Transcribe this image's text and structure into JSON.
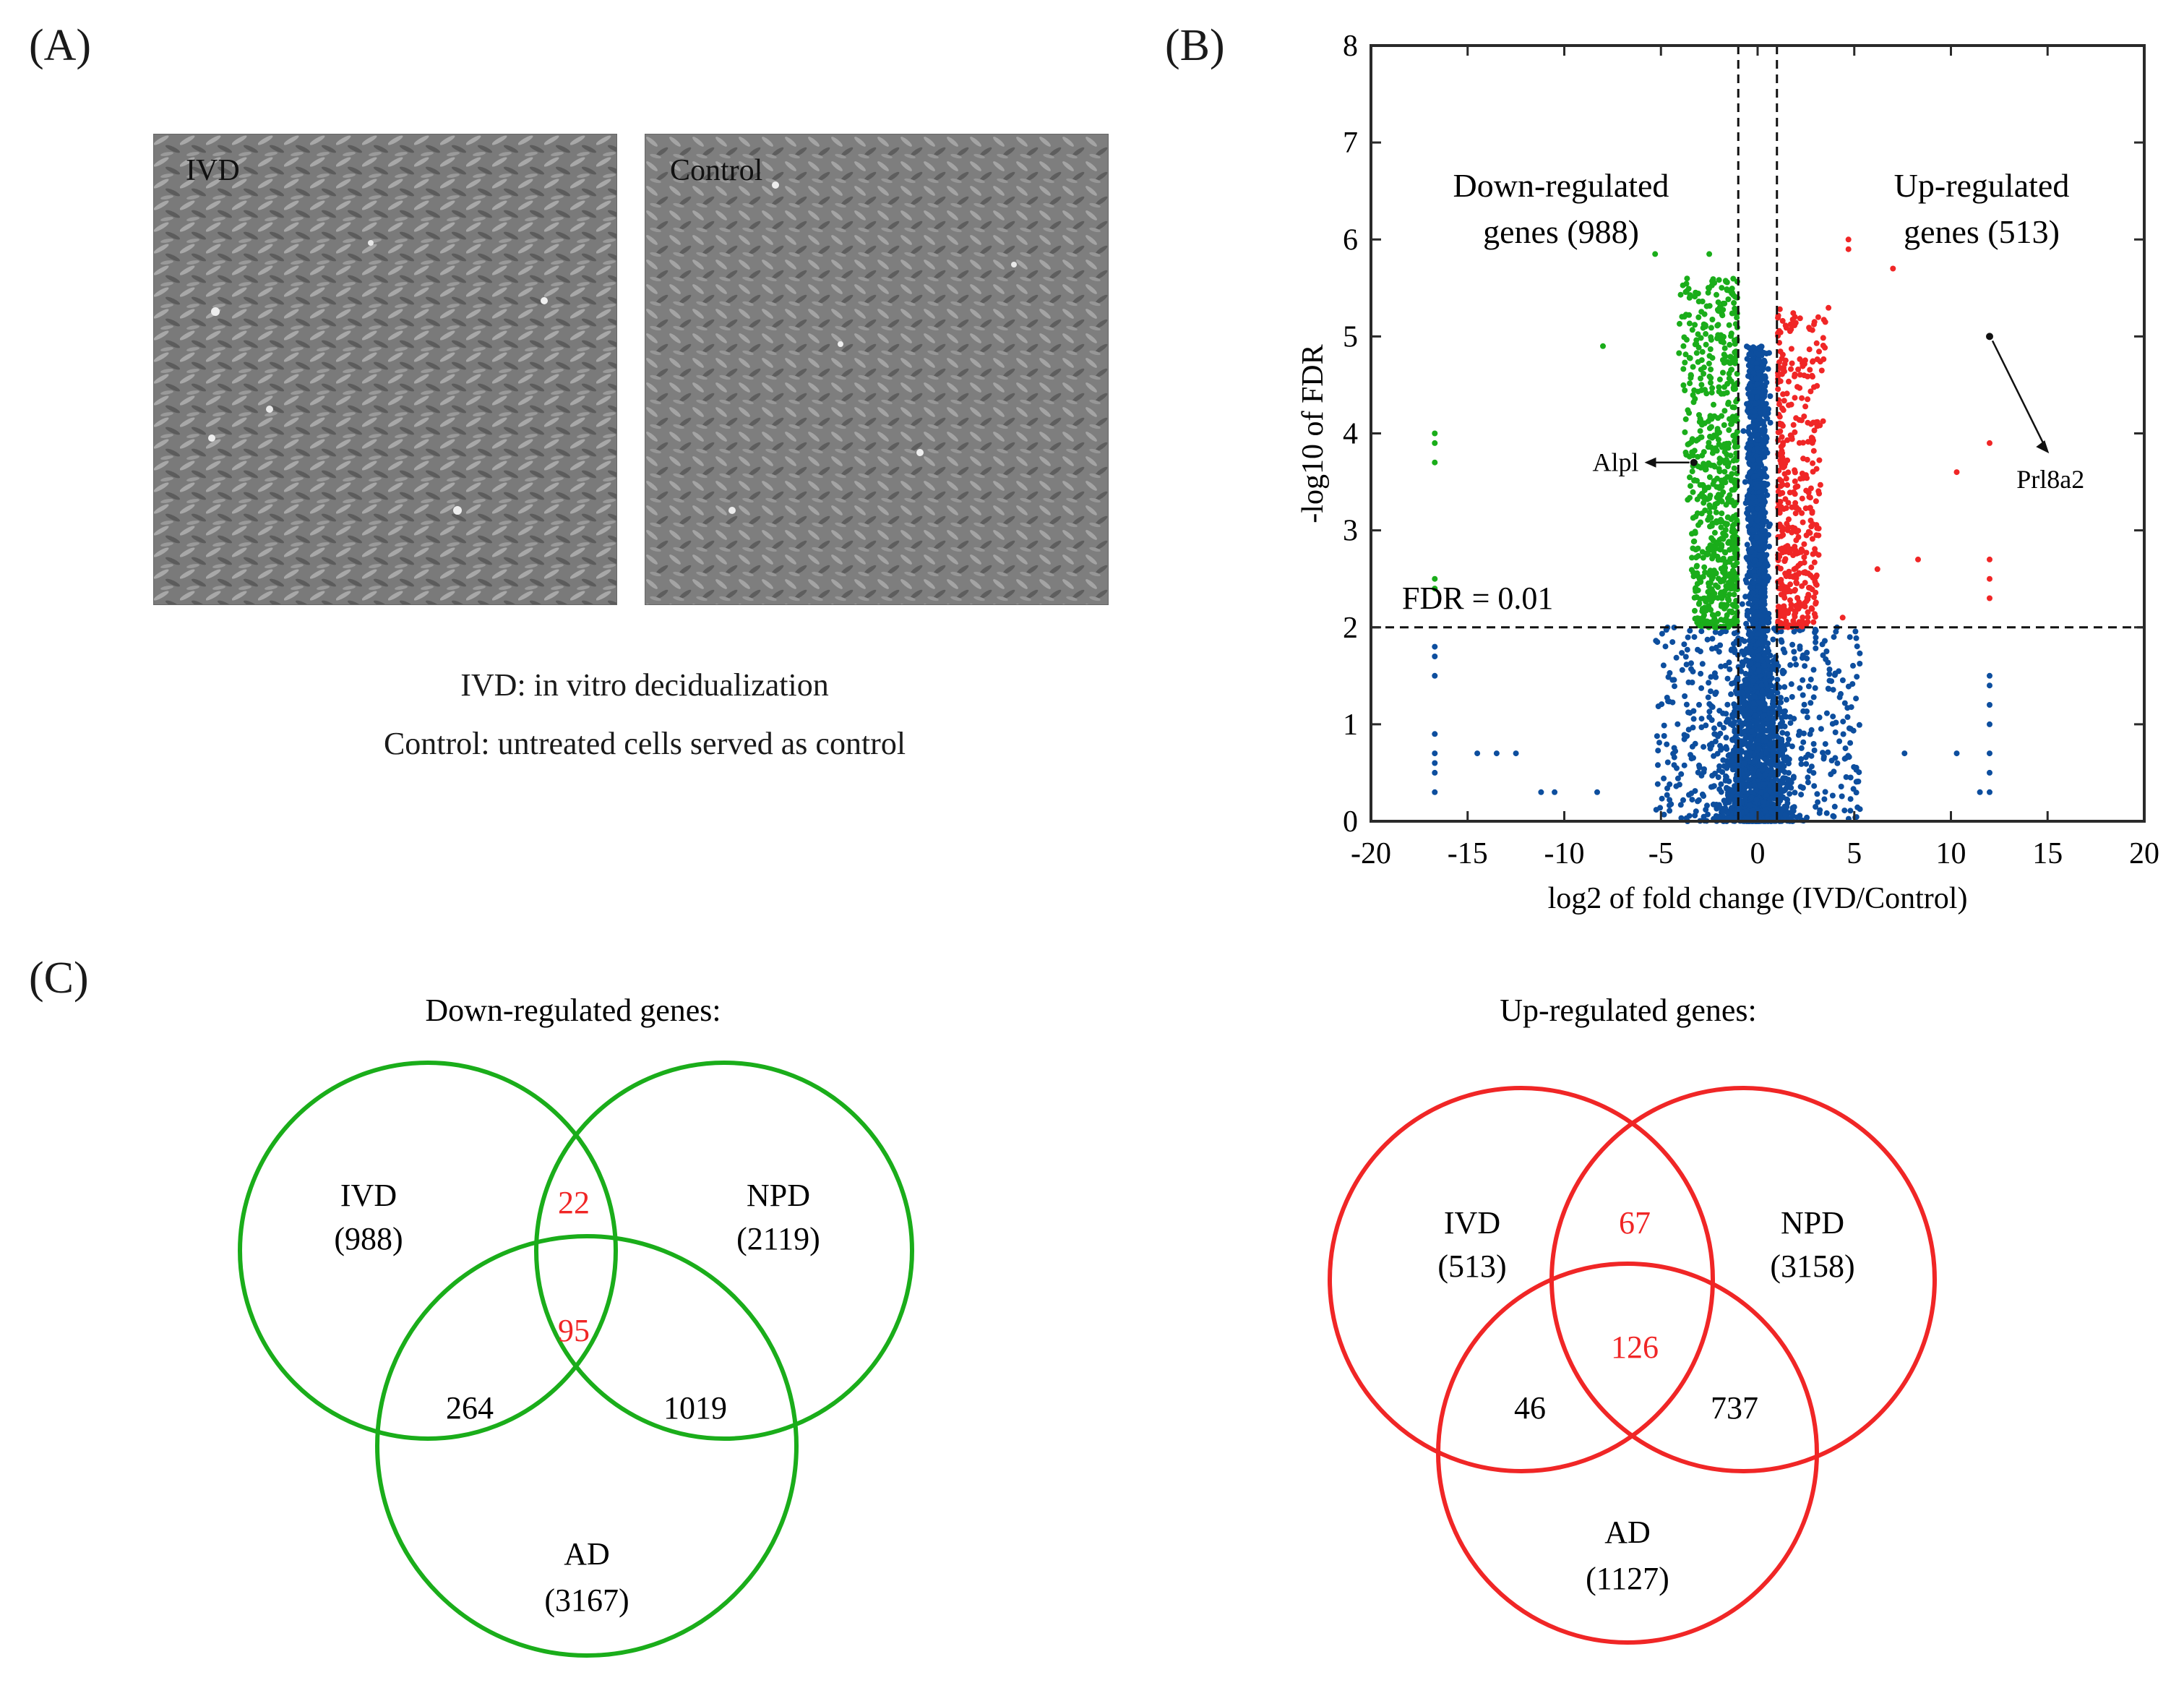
{
  "panels": {
    "a_label": "(A)",
    "b_label": "(B)",
    "c_label": "(C)"
  },
  "panel_a": {
    "image_left_label": "IVD",
    "image_right_label": "Control",
    "caption_line1": "IVD: in vitro decidualization",
    "caption_line2": "Control: untreated cells served as control"
  },
  "colors": {
    "down": "#1aad1a",
    "up": "#f02626",
    "ns": "#0d4e9e",
    "micrograph_bg": "#7d7d7d"
  },
  "chart_data": [
    {
      "type": "scatter",
      "subtype": "volcano",
      "xlabel": "log2 of fold change (IVD/Control)",
      "ylabel": "-log10 of FDR",
      "xlim": [
        -20,
        20
      ],
      "ylim": [
        0,
        8
      ],
      "xticks": [
        -20,
        -15,
        -10,
        -5,
        0,
        5,
        10,
        15,
        20
      ],
      "yticks": [
        0,
        1,
        2,
        3,
        4,
        5,
        6,
        7,
        8
      ],
      "thresholds": {
        "fdr_line_y": 2,
        "fold_change_lines_x": [
          -1,
          1
        ]
      },
      "fdr_label": "FDR = 0.01",
      "down_label_line1": "Down-regulated",
      "down_label_line2": "genes (988)",
      "up_label_line1": "Up-regulated",
      "up_label_line2": "genes (513)",
      "series": [
        {
          "name": "Down-regulated genes",
          "count": 988,
          "color": "#1aad1a",
          "outlier_points": [
            [
              -16.7,
              4.0
            ],
            [
              -16.7,
              3.9
            ],
            [
              -16.7,
              3.7
            ],
            [
              -16.7,
              2.5
            ],
            [
              -16.7,
              2.4
            ],
            [
              -8.0,
              4.9
            ],
            [
              -5.3,
              5.85
            ],
            [
              -2.5,
              5.85
            ]
          ]
        },
        {
          "name": "Up-regulated genes",
          "count": 513,
          "color": "#f02626",
          "outlier_points": [
            [
              4.7,
              6.0
            ],
            [
              4.7,
              5.9
            ],
            [
              7.0,
              5.7
            ],
            [
              12.0,
              3.9
            ],
            [
              12.0,
              2.7
            ],
            [
              12.0,
              2.5
            ],
            [
              12.0,
              2.3
            ],
            [
              10.3,
              3.6
            ],
            [
              8.3,
              2.7
            ],
            [
              6.2,
              2.6
            ],
            [
              4.4,
              2.1
            ]
          ]
        },
        {
          "name": "Not significant",
          "color": "#0d4e9e",
          "outlier_points": [
            [
              -16.7,
              1.8
            ],
            [
              -16.7,
              1.7
            ],
            [
              -16.7,
              1.5
            ],
            [
              -16.7,
              0.9
            ],
            [
              -16.7,
              0.7
            ],
            [
              -16.7,
              0.6
            ],
            [
              -16.7,
              0.5
            ],
            [
              -16.7,
              0.3
            ],
            [
              -14.5,
              0.7
            ],
            [
              -13.5,
              0.7
            ],
            [
              -12.5,
              0.7
            ],
            [
              -11.2,
              0.3
            ],
            [
              -10.5,
              0.3
            ],
            [
              -8.3,
              0.3
            ],
            [
              12.0,
              1.5
            ],
            [
              12.0,
              1.4
            ],
            [
              12.0,
              1.2
            ],
            [
              12.0,
              1.0
            ],
            [
              12.0,
              0.7
            ],
            [
              12.0,
              0.5
            ],
            [
              12.0,
              0.3
            ],
            [
              11.5,
              0.3
            ],
            [
              7.6,
              0.7
            ],
            [
              10.3,
              0.7
            ]
          ]
        }
      ],
      "annotations": [
        {
          "text": "Alpl",
          "point": [
            -3.3,
            3.7
          ],
          "label_at": [
            -6.0,
            3.7
          ]
        },
        {
          "text": "Prl8a2",
          "point": [
            12.0,
            5.0
          ],
          "label_at": [
            15.3,
            3.6
          ]
        }
      ]
    },
    {
      "type": "venn",
      "title": "Down-regulated genes:",
      "color": "#1aad1a",
      "sets": [
        {
          "name": "IVD",
          "total": "(988)"
        },
        {
          "name": "NPD",
          "total": "(2119)"
        },
        {
          "name": "AD",
          "total": "(3167)"
        }
      ],
      "intersections": {
        "IVD_NPD": "22",
        "IVD_NPD_AD": "95",
        "IVD_AD": "264",
        "NPD_AD": "1019"
      }
    },
    {
      "type": "venn",
      "title": "Up-regulated genes:",
      "color": "#f02626",
      "sets": [
        {
          "name": "IVD",
          "total": "(513)"
        },
        {
          "name": "NPD",
          "total": "(3158)"
        },
        {
          "name": "AD",
          "total": "(1127)"
        }
      ],
      "intersections": {
        "IVD_NPD": "67",
        "IVD_NPD_AD": "126",
        "IVD_AD": "46",
        "NPD_AD": "737"
      }
    }
  ]
}
